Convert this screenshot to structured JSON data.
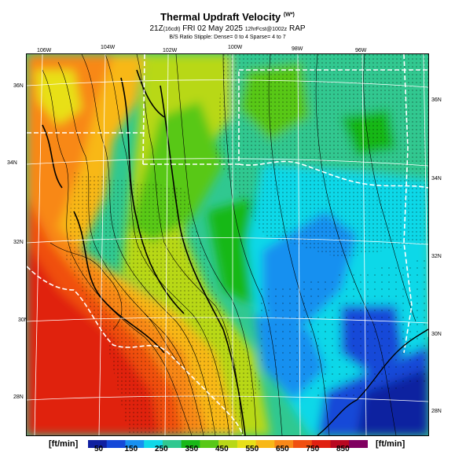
{
  "header": {
    "title": "Thermal Updraft Velocity",
    "title_sup": "(W*)",
    "subtitle_time": "21Z",
    "subtitle_local": "(16cdt)",
    "subtitle_date": "FRI 02 May 2025",
    "subtitle_fcst": "12hrFcst@1002z",
    "subtitle_model": "RAP",
    "note": "B/S Ratio Stipple: Dense= 0 to 4  Sparse= 4 to 7"
  },
  "map": {
    "lon_labels": [
      "106W",
      "104W",
      "102W",
      "100W",
      "98W",
      "96W"
    ],
    "lat_labels_left": [
      "36N",
      "34N",
      "32N",
      "30N",
      "28N"
    ],
    "lat_labels_right": [
      "36N",
      "34N",
      "32N",
      "30N",
      "28N"
    ]
  },
  "colorbar": {
    "units_left": "[ft/min]",
    "units_right": "[ft/min]",
    "ticks": [
      "50",
      "150",
      "250",
      "350",
      "450",
      "550",
      "650",
      "750",
      "850"
    ],
    "colors": [
      "#1020a0",
      "#1448d8",
      "#1890f0",
      "#10d8e8",
      "#30c890",
      "#18b818",
      "#58c818",
      "#b8d818",
      "#e8e018",
      "#f8b818",
      "#f88818",
      "#f05010",
      "#e02010",
      "#b80820",
      "#800060"
    ]
  }
}
